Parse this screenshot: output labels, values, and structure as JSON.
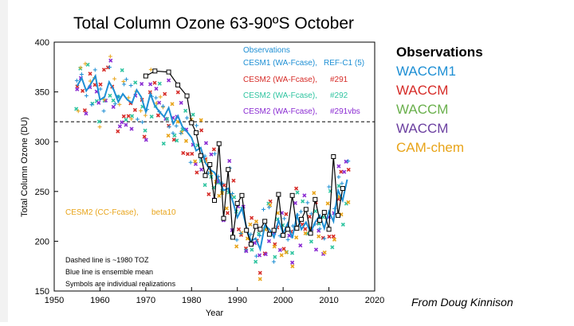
{
  "slide": {
    "title": "Total Column Ozone  63-90ºS October",
    "credit": "From Doug Kinnison"
  },
  "side_legend": [
    {
      "label": "Observations",
      "color": "#000000"
    },
    {
      "label": "WACCM1",
      "color": "#1e8fd4"
    },
    {
      "label": "WACCM",
      "color": "#d62c28"
    },
    {
      "label": "WACCM",
      "color": "#6ab04c"
    },
    {
      "label": "WACCM",
      "color": "#6b3fa0"
    },
    {
      "label": "CAM-chem",
      "color": "#e8a419"
    }
  ],
  "chart_data": {
    "type": "line",
    "title": "",
    "xlabel": "Year",
    "ylabel": "Total Column Ozone (DU)",
    "xlim": [
      1950,
      2020
    ],
    "ylim": [
      150,
      400
    ],
    "x_ticks": [
      1950,
      1960,
      1970,
      1980,
      1990,
      2000,
      2010,
      2020
    ],
    "y_ticks": [
      150,
      200,
      250,
      300,
      350,
      400
    ],
    "reference_line": {
      "y": 320,
      "style": "dashed",
      "label": "Dashed line is ~1980 TOZ"
    },
    "legend_header": "Observations",
    "legend_entries": [
      {
        "model": "CESM1 (WA-Fcase),",
        "run": "REF-C1 (5)",
        "color": "#1e8fd4"
      },
      {
        "model": "CESM2 (WA-Fcase),",
        "run": "#291",
        "color": "#d62c28"
      },
      {
        "model": "CESM2 (WA-Fcase),",
        "run": "#292",
        "color": "#2fc4a0"
      },
      {
        "model": "CESM2 (WA-Fcase),",
        "run": "#291vbs",
        "color": "#8a2bd2"
      }
    ],
    "extra_legend": {
      "model": "CESM2 (CC-Fcase),",
      "run": "beta10",
      "color": "#e8a419"
    },
    "notes": [
      "Dashed line is ~1980 TOZ",
      "Blue line is ensemble mean",
      "Symbols are individual realizations"
    ],
    "series": [
      {
        "name": "Observations",
        "color": "#000000",
        "marker": "square",
        "x": [
          1970,
          1972,
          1975,
          1977,
          1979,
          1980,
          1981,
          1982,
          1983,
          1984,
          1985,
          1986,
          1987,
          1988,
          1989,
          1990,
          1991,
          1992,
          1993,
          1994,
          1995,
          1996,
          1997,
          1998,
          1999,
          2000,
          2001,
          2002,
          2003,
          2004,
          2005,
          2006,
          2007,
          2008,
          2009,
          2010,
          2011,
          2012,
          2013
        ],
        "values": [
          366,
          371,
          370,
          357,
          346,
          319,
          309,
          286,
          266,
          277,
          241,
          298,
          223,
          272,
          204,
          238,
          246,
          211,
          197,
          215,
          212,
          220,
          207,
          211,
          247,
          206,
          212,
          246,
          213,
          222,
          232,
          208,
          242,
          221,
          229,
          212,
          285,
          226,
          253
        ]
      },
      {
        "name": "Blue line is ensemble mean",
        "color": "#1e8fd4",
        "marker": "none",
        "x": [
          1955,
          1956,
          1957,
          1958,
          1959,
          1960,
          1961,
          1962,
          1963,
          1964,
          1965,
          1966,
          1967,
          1968,
          1969,
          1970,
          1971,
          1972,
          1973,
          1974,
          1975,
          1976,
          1977,
          1978,
          1979,
          1980,
          1981,
          1982,
          1983,
          1984,
          1985,
          1986,
          1987,
          1988,
          1989,
          1990,
          1991,
          1992,
          1993,
          1994,
          1995,
          1996,
          1997,
          1998,
          1999,
          2000,
          2001,
          2002,
          2003,
          2004,
          2005,
          2006,
          2007,
          2008,
          2009,
          2010,
          2011,
          2012,
          2013,
          2014
        ],
        "values": [
          356,
          364,
          351,
          358,
          366,
          342,
          345,
          360,
          352,
          340,
          348,
          342,
          339,
          352,
          345,
          330,
          348,
          336,
          330,
          325,
          334,
          318,
          326,
          315,
          310,
          304,
          291,
          294,
          279,
          272,
          269,
          261,
          251,
          253,
          240,
          224,
          233,
          214,
          200,
          203,
          192,
          216,
          212,
          204,
          221,
          208,
          218,
          203,
          226,
          212,
          219,
          209,
          219,
          226,
          213,
          230,
          220,
          251,
          241,
          262
        ]
      }
    ]
  }
}
